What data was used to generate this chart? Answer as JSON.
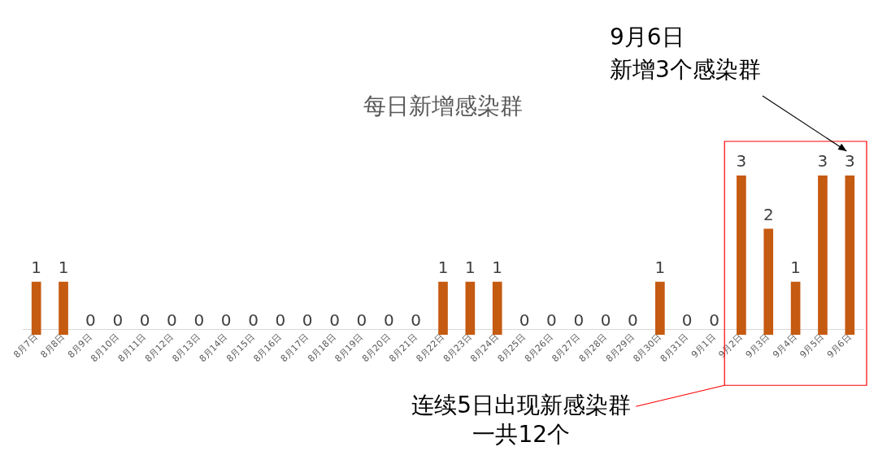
{
  "chart_data": {
    "type": "bar",
    "title": "每日新增感染群",
    "categories": [
      "8月7日",
      "8月8日",
      "8月9日",
      "8月10日",
      "8月11日",
      "8月12日",
      "8月13日",
      "8月14日",
      "8月15日",
      "8月16日",
      "8月17日",
      "8月18日",
      "8月19日",
      "8月20日",
      "8月21日",
      "8月22日",
      "8月23日",
      "8月24日",
      "8月25日",
      "8月26日",
      "8月27日",
      "8月28日",
      "8月29日",
      "8月30日",
      "8月31日",
      "9月1日",
      "9月2日",
      "9月3日",
      "9月4日",
      "9月5日",
      "9月6日"
    ],
    "values": [
      1,
      1,
      0,
      0,
      0,
      0,
      0,
      0,
      0,
      0,
      0,
      0,
      0,
      0,
      0,
      1,
      1,
      1,
      0,
      0,
      0,
      0,
      0,
      1,
      0,
      0,
      3,
      2,
      1,
      3,
      3
    ],
    "color": "#c55a11",
    "data_labels": true,
    "grid": false,
    "legend": false,
    "annotations": [
      "9月6日",
      "新增3个感染群",
      "连续5日出现新感染群",
      "一共12个"
    ]
  }
}
